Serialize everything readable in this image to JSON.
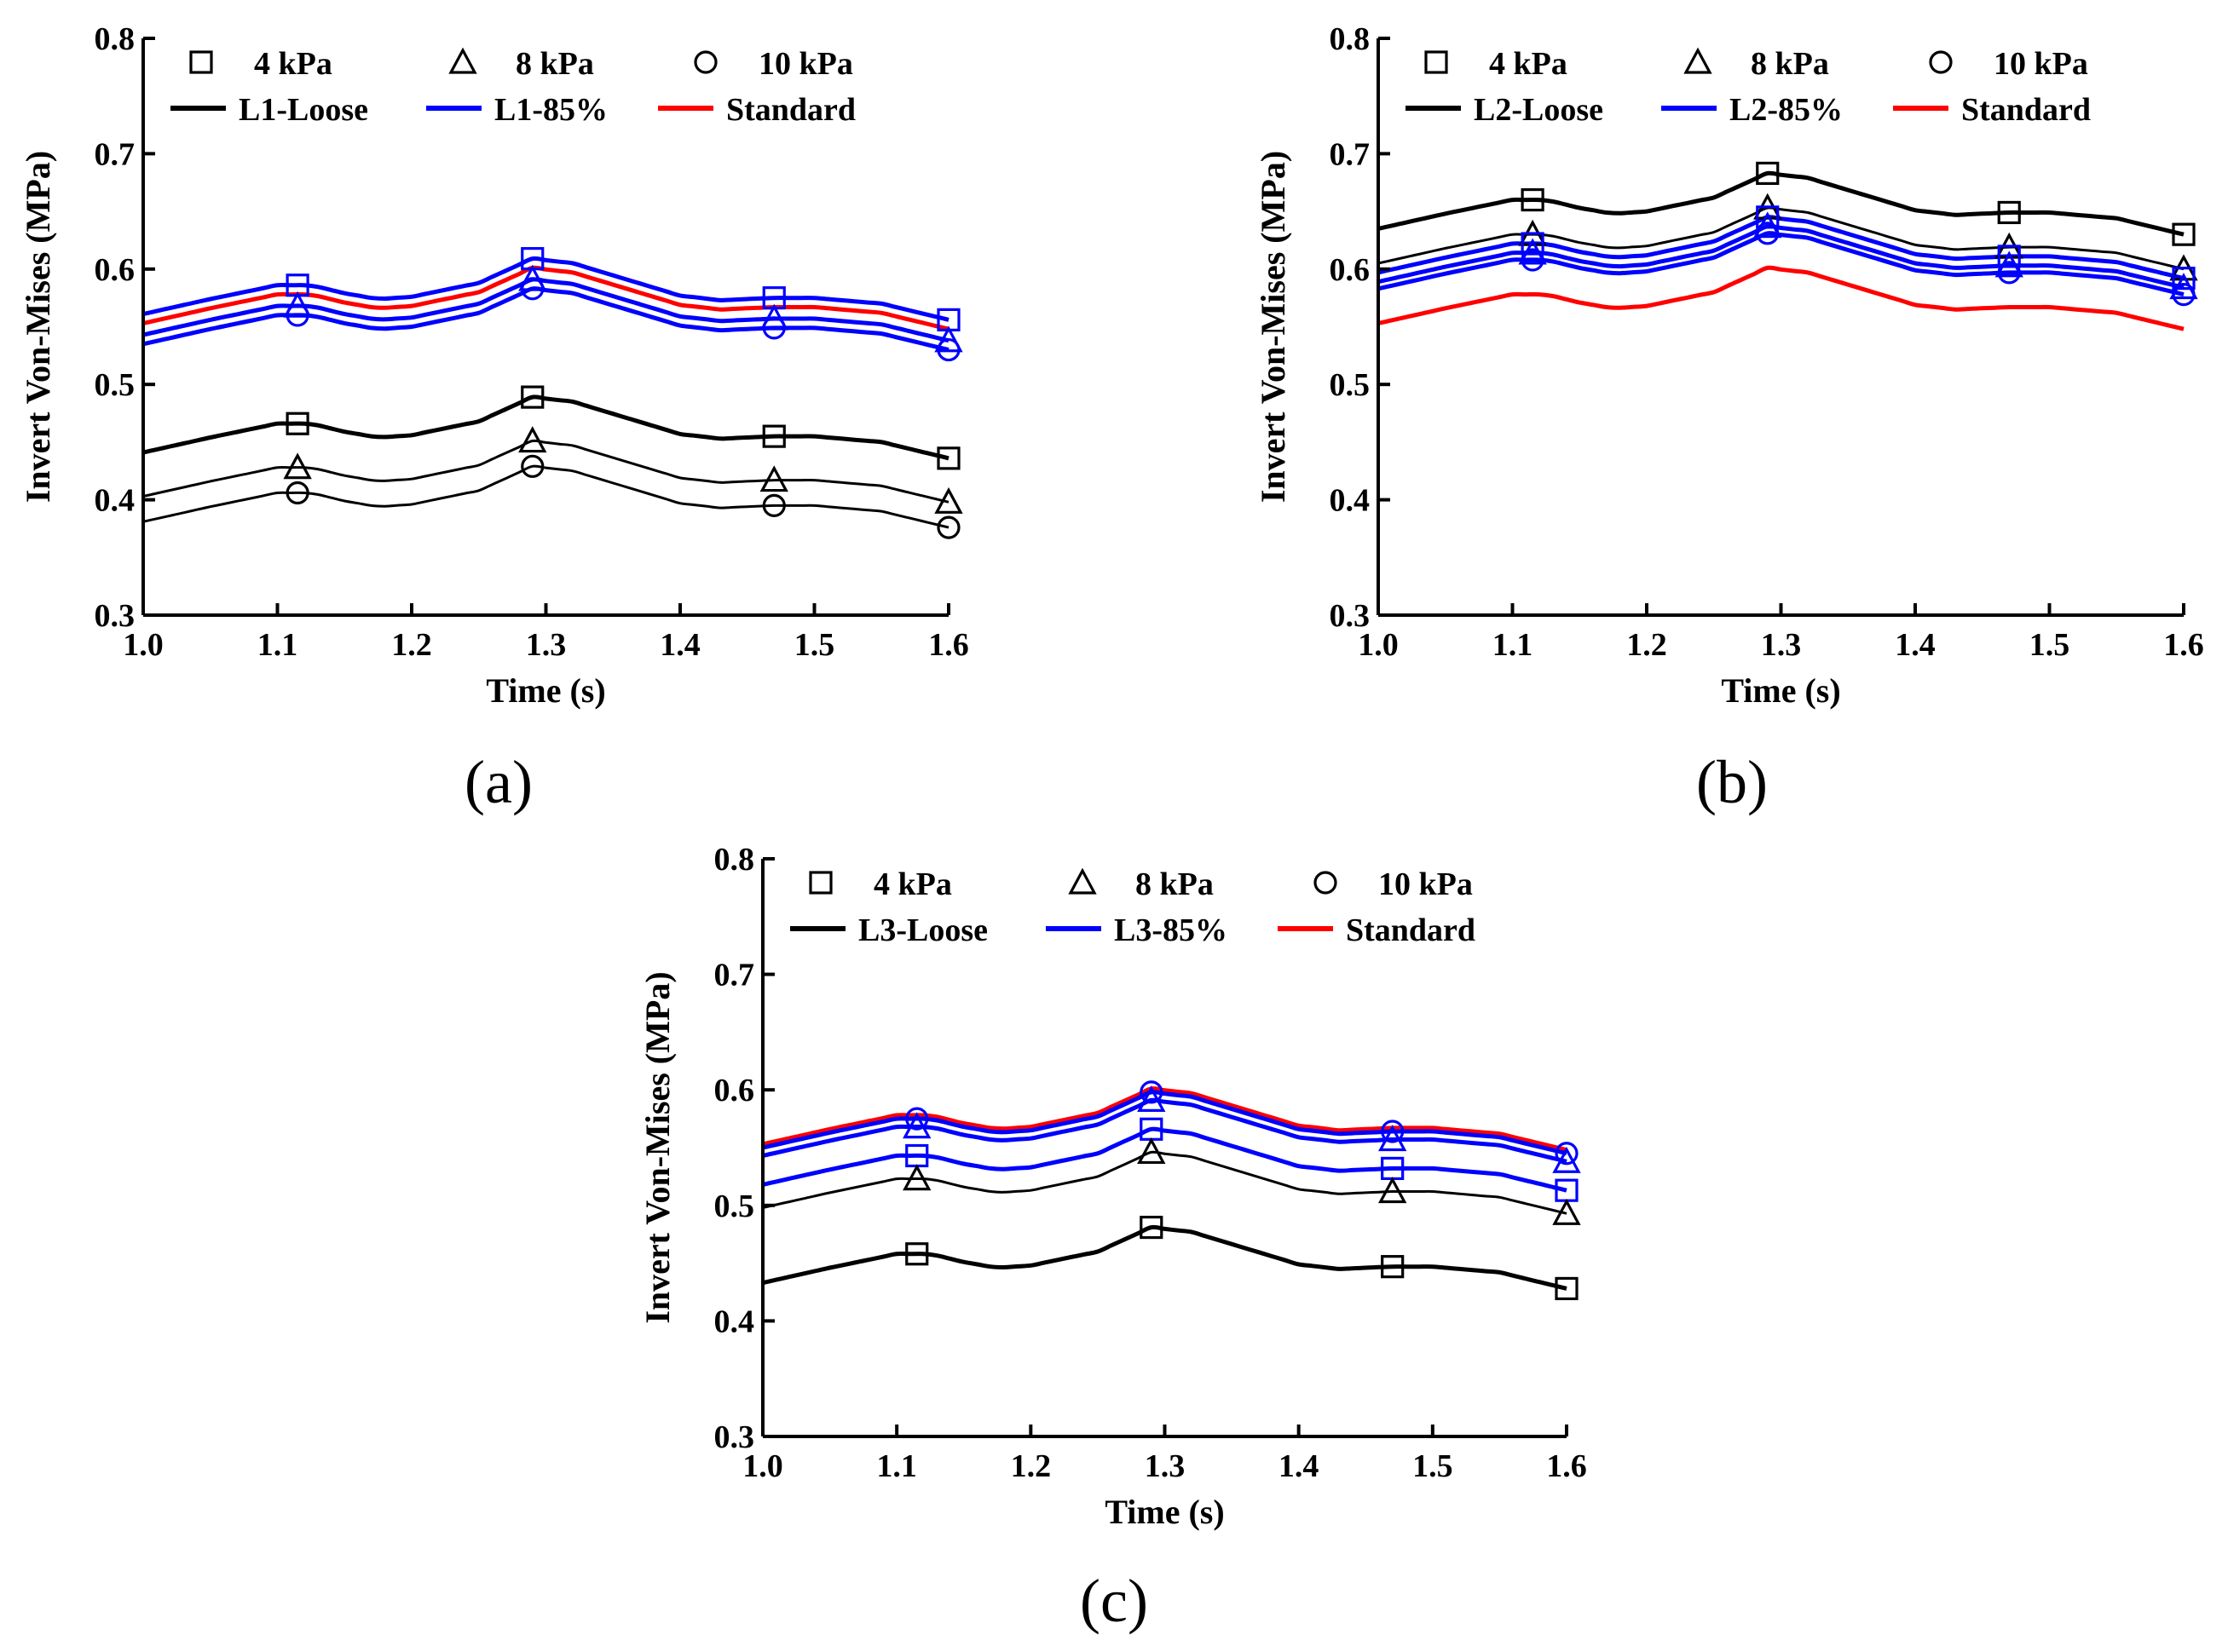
{
  "chart_data": [
    {
      "type": "line",
      "panel_label": "(a)",
      "xlabel": "Time (s)",
      "ylabel": "Invert Von-Mises (MPa)",
      "xlim": [
        1.0,
        1.6
      ],
      "ylim": [
        0.3,
        0.8
      ],
      "xticks": [
        "1.0",
        "1.1",
        "1.2",
        "1.3",
        "1.4",
        "1.5",
        "1.6"
      ],
      "yticks": [
        "0.3",
        "0.4",
        "0.5",
        "0.6",
        "0.7",
        "0.8"
      ],
      "legend_markers": [
        {
          "marker": "square",
          "label": "4 kPa"
        },
        {
          "marker": "triangle",
          "label": "8 kPa"
        },
        {
          "marker": "circle",
          "label": "10 kPa"
        }
      ],
      "legend_lines": [
        {
          "color": "#000000",
          "label": "L1-Loose"
        },
        {
          "color": "#0000ff",
          "label": "L1-85%"
        },
        {
          "color": "#ff0000",
          "label": "Standard"
        }
      ],
      "series": [
        {
          "name": "Standard",
          "color": "#ff0000",
          "marker": "none",
          "offset": 0.0
        },
        {
          "name": "L1-85% 4 kPa",
          "color": "#0000ff",
          "marker": "square",
          "offset": 0.008
        },
        {
          "name": "L1-85% 8 kPa",
          "color": "#0000ff",
          "marker": "triangle",
          "offset": -0.01
        },
        {
          "name": "L1-85% 10 kPa",
          "color": "#0000ff",
          "marker": "circle",
          "offset": -0.018
        },
        {
          "name": "L1-Loose 4 kPa",
          "color": "#000000",
          "marker": "square",
          "offset": -0.112
        },
        {
          "name": "L1-Loose 8 kPa",
          "color": "#000000",
          "marker": "triangle",
          "offset": -0.15
        },
        {
          "name": "L1-Loose 10 kPa",
          "color": "#000000",
          "marker": "circle",
          "offset": -0.172
        }
      ]
    },
    {
      "type": "line",
      "panel_label": "(b)",
      "xlabel": "Time (s)",
      "ylabel": "Invert Von-Mises (MPa)",
      "xlim": [
        1.0,
        1.6
      ],
      "ylim": [
        0.3,
        0.8
      ],
      "xticks": [
        "1.0",
        "1.1",
        "1.2",
        "1.3",
        "1.4",
        "1.5",
        "1.6"
      ],
      "yticks": [
        "0.3",
        "0.4",
        "0.5",
        "0.6",
        "0.7",
        "0.8"
      ],
      "legend_markers": [
        {
          "marker": "square",
          "label": "4 kPa"
        },
        {
          "marker": "triangle",
          "label": "8 kPa"
        },
        {
          "marker": "circle",
          "label": "10 kPa"
        }
      ],
      "legend_lines": [
        {
          "color": "#000000",
          "label": "L2-Loose"
        },
        {
          "color": "#0000ff",
          "label": "L2-85%"
        },
        {
          "color": "#ff0000",
          "label": "Standard"
        }
      ],
      "series": [
        {
          "name": "L2-Loose 4 kPa",
          "color": "#000000",
          "marker": "square",
          "offset": 0.082
        },
        {
          "name": "L2-Loose 8 kPa",
          "color": "#000000",
          "marker": "triangle",
          "offset": 0.052
        },
        {
          "name": "L2-85% 4 kPa",
          "color": "#0000ff",
          "marker": "square",
          "offset": 0.044
        },
        {
          "name": "L2-85% 8 kPa",
          "color": "#0000ff",
          "marker": "triangle",
          "offset": 0.036
        },
        {
          "name": "L2-85% 10 kPa",
          "color": "#0000ff",
          "marker": "circle",
          "offset": 0.03
        },
        {
          "name": "Standard",
          "color": "#ff0000",
          "marker": "none",
          "offset": 0.0
        }
      ]
    },
    {
      "type": "line",
      "panel_label": "(c)",
      "xlabel": "Time (s)",
      "ylabel": "Invert Von-Mises (MPa)",
      "xlim": [
        1.0,
        1.6
      ],
      "ylim": [
        0.3,
        0.8
      ],
      "xticks": [
        "1.0",
        "1.1",
        "1.2",
        "1.3",
        "1.4",
        "1.5",
        "1.6"
      ],
      "yticks": [
        "0.3",
        "0.4",
        "0.5",
        "0.6",
        "0.7",
        "0.8"
      ],
      "legend_markers": [
        {
          "marker": "square",
          "label": "4 kPa"
        },
        {
          "marker": "triangle",
          "label": "8 kPa"
        },
        {
          "marker": "circle",
          "label": "10 kPa"
        }
      ],
      "legend_lines": [
        {
          "color": "#000000",
          "label": "L3-Loose"
        },
        {
          "color": "#0000ff",
          "label": "L3-85%"
        },
        {
          "color": "#ff0000",
          "label": "Standard"
        }
      ],
      "series": [
        {
          "name": "Standard",
          "color": "#ff0000",
          "marker": "none",
          "offset": 0.0
        },
        {
          "name": "L3-85% 10 kPa",
          "color": "#0000ff",
          "marker": "circle",
          "offset": -0.003
        },
        {
          "name": "L3-85% 8 kPa",
          "color": "#0000ff",
          "marker": "triangle",
          "offset": -0.01
        },
        {
          "name": "L3-85% 4 kPa",
          "color": "#0000ff",
          "marker": "square",
          "offset": -0.035
        },
        {
          "name": "L3-Loose 8 kPa",
          "color": "#000000",
          "marker": "triangle",
          "offset": -0.055
        },
        {
          "name": "L3-Loose 4 kPa",
          "color": "#000000",
          "marker": "square",
          "offset": -0.12
        }
      ]
    }
  ],
  "base_curve": {
    "x": [
      1.0,
      1.05,
      1.1,
      1.125,
      1.15,
      1.175,
      1.2,
      1.25,
      1.29,
      1.32,
      1.36,
      1.4,
      1.43,
      1.47,
      1.5,
      1.55,
      1.6
    ],
    "y": [
      0.553,
      0.566,
      0.578,
      0.578,
      0.571,
      0.566,
      0.568,
      0.58,
      0.601,
      0.597,
      0.583,
      0.569,
      0.565,
      0.567,
      0.567,
      0.562,
      0.548
    ]
  },
  "marker_x": [
    1.115,
    1.29,
    1.47,
    1.6
  ]
}
